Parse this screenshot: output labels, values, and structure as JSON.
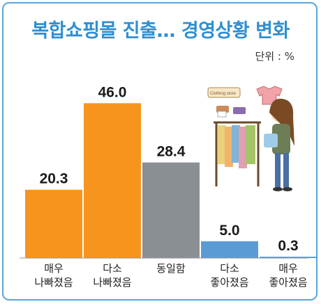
{
  "chart_data": {
    "type": "bar",
    "title": "복합쇼핑몰 진출… 경영상황 변화",
    "unit_label": "단위 : %",
    "categories": [
      "매우\n나빠졌음",
      "다소\n나빠졌음",
      "동일함",
      "다소\n좋아졌음",
      "매우\n좋아졌음"
    ],
    "values": [
      20.3,
      46.0,
      28.4,
      5.0,
      0.3
    ],
    "value_labels": [
      "20.3",
      "46.0",
      "28.4",
      "5.0",
      "0.3"
    ],
    "colors": [
      "#f7941d",
      "#f7941d",
      "#8a8f94",
      "#5b9bd5",
      "#5b9bd5"
    ],
    "ylim": [
      0,
      50
    ],
    "grid": false,
    "legend": "none"
  },
  "illustration": {
    "sign_text": "Clothing store"
  }
}
